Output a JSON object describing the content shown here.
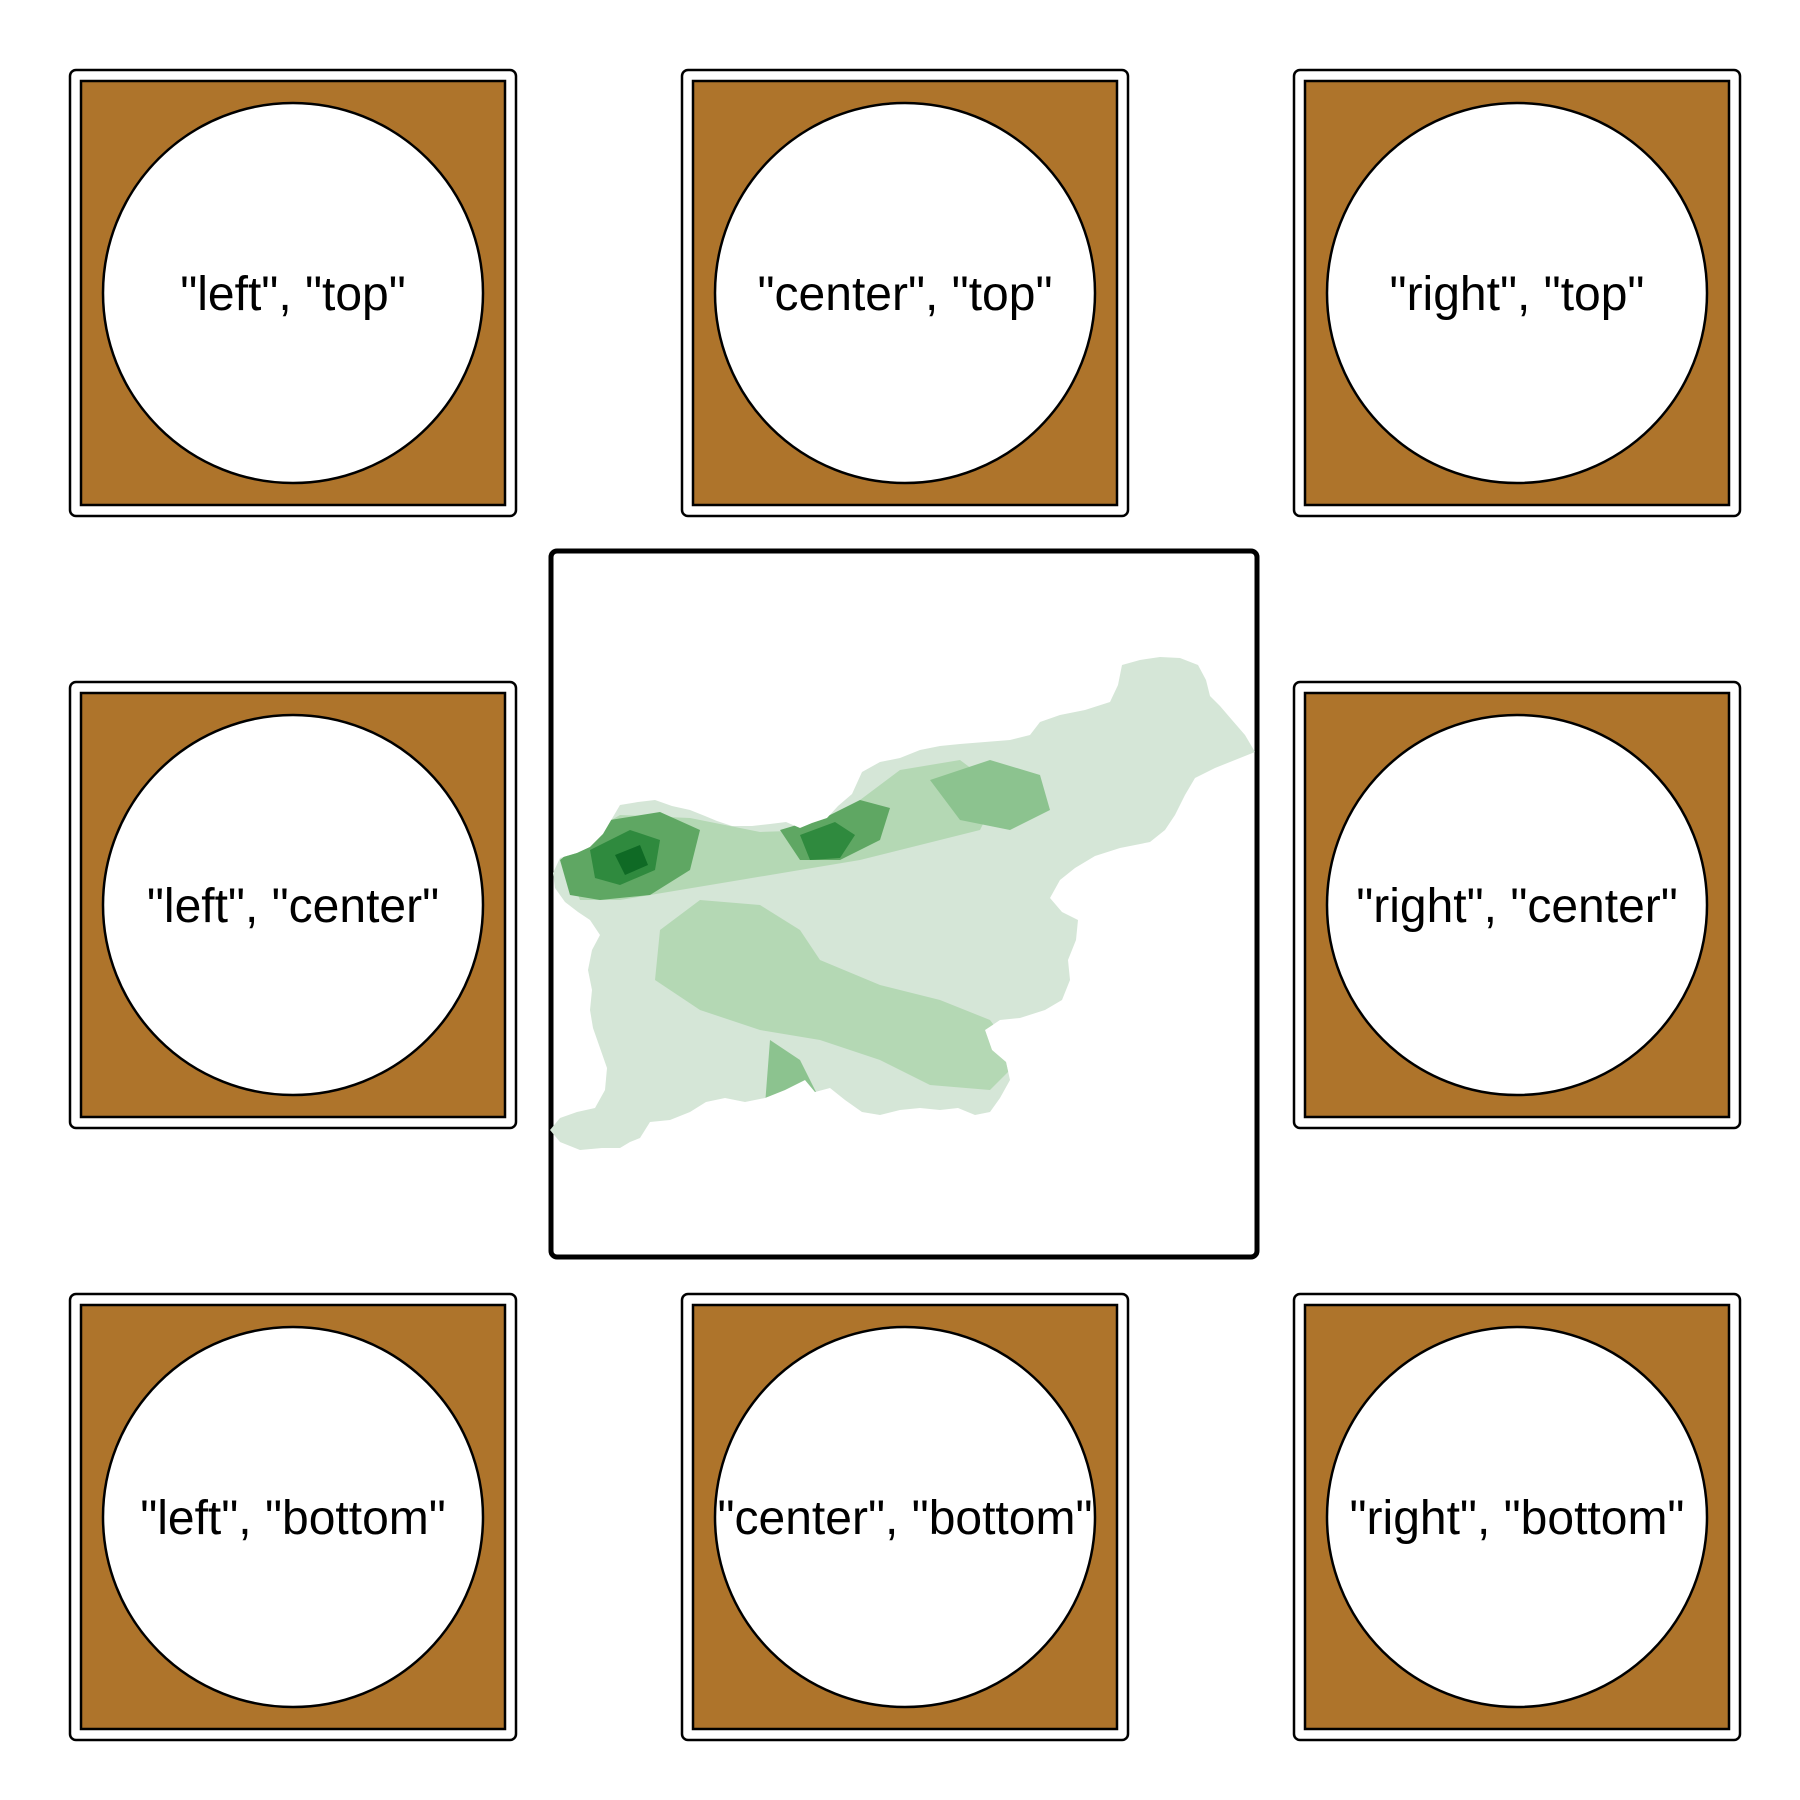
{
  "colors": {
    "panel_fill": "#ae742b",
    "circle_fill": "#ffffff",
    "stroke": "#000000",
    "map_shades": [
      "#d5e6d7",
      "#b4d8b4",
      "#8cc38f",
      "#5fa763",
      "#2f8a3e",
      "#0f6a25"
    ]
  },
  "panels": [
    {
      "id": "left-top",
      "label": "\"left\", \"top\""
    },
    {
      "id": "center-top",
      "label": "\"center\", \"top\""
    },
    {
      "id": "right-top",
      "label": "\"right\", \"top\""
    },
    {
      "id": "left-center",
      "label": "\"left\", \"center\""
    },
    {
      "id": "right-center",
      "label": "\"right\", \"center\""
    },
    {
      "id": "left-bottom",
      "label": "\"left\", \"bottom\""
    },
    {
      "id": "center-bottom",
      "label": "\"center\", \"bottom\""
    },
    {
      "id": "right-bottom",
      "label": "\"right\", \"bottom\""
    }
  ]
}
